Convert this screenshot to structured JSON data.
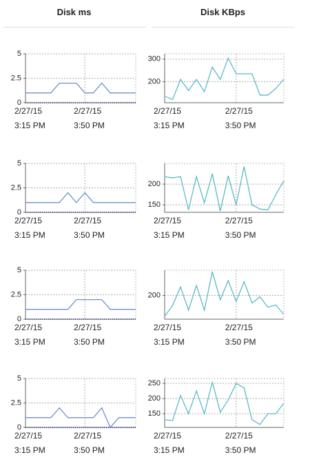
{
  "columns": [
    "Disk ms",
    "Disk KBps"
  ],
  "chart_data": [
    {
      "type": "line",
      "categories": [
        "2/27/15 3:15 PM",
        null,
        null,
        null,
        null,
        null,
        null,
        "2/27/15 3:50 PM",
        null,
        null,
        null,
        null,
        null,
        null
      ],
      "ylim": [
        0,
        5
      ],
      "yticks": [
        0,
        2.5,
        5
      ],
      "grid": true,
      "series": [
        {
          "color": "#6f8fcc",
          "values": [
            1,
            1,
            1,
            1,
            2,
            2,
            2,
            1,
            1,
            2,
            1,
            1,
            1,
            1
          ]
        },
        {
          "color": "#3a3a9c",
          "values": [
            0,
            0,
            0,
            0,
            0,
            0,
            0,
            0,
            0,
            0,
            0,
            0,
            0,
            0
          ]
        }
      ]
    },
    {
      "type": "line",
      "categories": [
        "2/27/15 3:15 PM",
        null,
        null,
        null,
        null,
        null,
        null,
        null,
        null,
        "2/27/15 3:50 PM",
        null,
        null,
        null,
        null,
        null,
        null
      ],
      "ylim": [
        106,
        324
      ],
      "yticks": [
        200,
        300
      ],
      "grid": true,
      "series": [
        {
          "color": "#5bb8cc",
          "values": [
            135,
            120,
            210,
            160,
            210,
            155,
            265,
            210,
            305,
            235,
            235,
            235,
            140,
            140,
            170,
            210
          ]
        }
      ]
    },
    {
      "type": "line",
      "categories": [
        "2/27/15 3:15 PM",
        null,
        null,
        null,
        null,
        null,
        null,
        "2/27/15 3:50 PM",
        null,
        null,
        null,
        null,
        null,
        null
      ],
      "ylim": [
        0,
        5
      ],
      "yticks": [
        0,
        2.5,
        5
      ],
      "grid": true,
      "series": [
        {
          "color": "#6f8fcc",
          "values": [
            1,
            1,
            1,
            1,
            1,
            2,
            1,
            2,
            1,
            1,
            1,
            1,
            1,
            1
          ]
        },
        {
          "color": "#3a3a9c",
          "values": [
            0,
            0,
            0,
            0,
            0,
            0,
            0,
            0,
            0,
            0,
            0,
            0,
            0,
            0
          ]
        }
      ]
    },
    {
      "type": "line",
      "categories": [
        "2/27/15 3:15 PM",
        null,
        null,
        null,
        null,
        null,
        null,
        null,
        null,
        "2/27/15 3:50 PM",
        null,
        null,
        null,
        null,
        null,
        null
      ],
      "ylim": [
        132,
        250
      ],
      "yticks": [
        150,
        200
      ],
      "grid": true,
      "series": [
        {
          "color": "#5bb8cc",
          "values": [
            218,
            215,
            218,
            138,
            218,
            155,
            225,
            135,
            220,
            150,
            242,
            150,
            140,
            138,
            175,
            208
          ]
        }
      ]
    },
    {
      "type": "line",
      "categories": [
        "2/27/15 3:15 PM",
        null,
        null,
        null,
        null,
        null,
        null,
        "2/27/15 3:50 PM",
        null,
        null,
        null,
        null,
        null,
        null
      ],
      "ylim": [
        0,
        5
      ],
      "yticks": [
        0,
        2.5,
        5
      ],
      "grid": true,
      "series": [
        {
          "color": "#6f8fcc",
          "values": [
            1,
            1,
            1,
            1,
            1,
            1,
            2,
            2,
            2,
            2,
            1,
            1,
            1,
            1
          ]
        },
        {
          "color": "#3a3a9c",
          "values": [
            0,
            0,
            0,
            0,
            0,
            0,
            0,
            0,
            0,
            0,
            0,
            0,
            0,
            0
          ]
        }
      ]
    },
    {
      "type": "line",
      "categories": [
        "2/27/15 3:15 PM",
        null,
        null,
        null,
        null,
        null,
        null,
        null,
        null,
        "2/27/15 3:50 PM",
        null,
        null,
        null,
        null,
        null,
        null
      ],
      "ylim": [
        150,
        253
      ],
      "yticks": [
        200
      ],
      "grid": true,
      "series": [
        {
          "color": "#5bb8cc",
          "values": [
            156,
            179,
            218,
            169,
            221,
            169,
            250,
            191,
            231,
            187,
            229,
            184,
            197,
            175,
            180,
            160
          ]
        }
      ]
    },
    {
      "type": "line",
      "categories": [
        "2/27/15 3:15 PM",
        null,
        null,
        null,
        null,
        null,
        null,
        "2/27/15 3:50 PM",
        null,
        null,
        null,
        null,
        null,
        null
      ],
      "ylim": [
        0,
        5
      ],
      "yticks": [
        0,
        2.5,
        5
      ],
      "grid": true,
      "series": [
        {
          "color": "#6f8fcc",
          "values": [
            1,
            1,
            1,
            1,
            2,
            1,
            1,
            1,
            1,
            2,
            0,
            1,
            1,
            1
          ]
        },
        {
          "color": "#3a3a9c",
          "values": [
            0,
            0,
            0,
            0,
            0,
            0,
            0,
            0,
            0,
            0,
            0,
            0,
            0,
            0
          ]
        }
      ]
    },
    {
      "type": "line",
      "categories": [
        "2/27/15 3:15 PM",
        null,
        null,
        null,
        null,
        null,
        null,
        null,
        null,
        "2/27/15 3:50 PM",
        null,
        null,
        null,
        null,
        null,
        null
      ],
      "ylim": [
        105,
        266
      ],
      "yticks": [
        150,
        200,
        250
      ],
      "grid": true,
      "series": [
        {
          "color": "#5bb8cc",
          "values": [
            130,
            128,
            210,
            150,
            225,
            150,
            255,
            155,
            195,
            250,
            235,
            130,
            115,
            150,
            150,
            185
          ]
        }
      ]
    }
  ]
}
